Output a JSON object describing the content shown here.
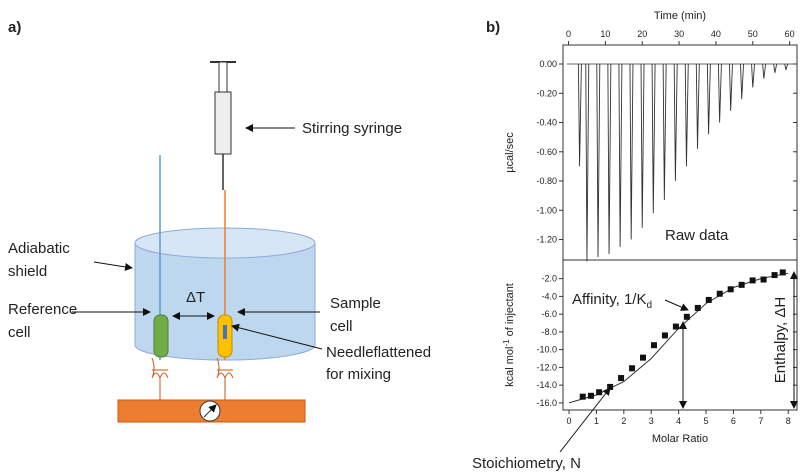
{
  "diagram": {
    "panel_a": "a)",
    "panel_b": "b)",
    "syringe_label": "Stirring syringe",
    "shield_label": [
      "Adiabatic",
      "shield"
    ],
    "reference_label": [
      "Reference",
      "cell"
    ],
    "delta_t": "ΔT",
    "sample_label": [
      "Sample",
      "cell"
    ],
    "needle_label": [
      "Needleflattened",
      "for mixing"
    ]
  },
  "chart_data": [
    {
      "type": "line",
      "x_label": "Time (min)",
      "y_label": "µcal/sec",
      "annotation": "Raw data",
      "color": "#333333",
      "x": [
        3,
        5,
        8,
        11,
        14,
        17,
        20,
        23,
        26,
        29,
        32,
        35,
        38,
        41,
        44,
        47,
        50,
        53,
        56,
        59
      ],
      "values": [
        -0.7,
        -1.35,
        -1.32,
        -1.3,
        -1.25,
        -1.2,
        -1.12,
        -1.02,
        -0.93,
        -0.8,
        -0.7,
        -0.58,
        -0.48,
        -0.4,
        -0.32,
        -0.24,
        -0.16,
        -0.1,
        -0.06,
        -0.04
      ],
      "xlim": [
        -1.5,
        62
      ],
      "xticks": [
        0,
        10,
        20,
        30,
        40,
        50,
        60
      ],
      "ylim": [
        -1.34,
        0.13
      ],
      "yticks": [
        {
          "value": 0,
          "label": "0.00"
        },
        {
          "value": -0.2,
          "label": "-0.20"
        },
        {
          "value": -0.4,
          "label": "-0.40"
        },
        {
          "value": -0.6,
          "label": "-0.60"
        },
        {
          "value": -0.8,
          "label": "-0.80"
        },
        {
          "value": -1.0,
          "label": "-1.00"
        },
        {
          "value": -1.2,
          "label": "-1.20"
        }
      ]
    },
    {
      "type": "scatter",
      "x_label": "Molar Ratio",
      "y_label": [
        "kcal mol",
        "-1",
        " of injectant"
      ],
      "color": "#111111",
      "x": [
        0.5,
        0.8,
        1.1,
        1.5,
        1.9,
        2.3,
        2.7,
        3.1,
        3.5,
        3.9,
        4.3,
        4.7,
        5.1,
        5.5,
        5.9,
        6.3,
        6.7,
        7.1,
        7.5,
        7.8
      ],
      "values": [
        -15.3,
        -15.2,
        -14.8,
        -14.2,
        -13.2,
        -12.1,
        -10.9,
        -9.5,
        -8.4,
        -7.4,
        -6.3,
        -5.3,
        -4.4,
        -3.7,
        -3.2,
        -2.7,
        -2.2,
        -2.1,
        -1.6,
        -1.3
      ],
      "fit": {
        "x": [
          0,
          1,
          2,
          3,
          4,
          5,
          6,
          7,
          8
        ],
        "values": [
          -16.0,
          -15.1,
          -13.6,
          -11.0,
          -7.6,
          -4.8,
          -3.0,
          -2.0,
          -1.4
        ]
      },
      "xlim": [
        -0.22,
        8.32
      ],
      "xticks": [
        0,
        1,
        2,
        3,
        4,
        5,
        6,
        7,
        8
      ],
      "ylim": [
        -16.8,
        0.1
      ],
      "yticks": [
        {
          "value": -2,
          "label": "-2.0"
        },
        {
          "value": -4,
          "label": "-4.0"
        },
        {
          "value": -6,
          "label": "-6.0"
        },
        {
          "value": -8,
          "label": "-8.0"
        },
        {
          "value": -10,
          "label": "-10.0"
        },
        {
          "value": -12,
          "label": "-12.0"
        },
        {
          "value": -14,
          "label": "-14.0"
        },
        {
          "value": -16,
          "label": "-16.0"
        }
      ],
      "annotations": {
        "affinity": [
          "Affinity, 1/K",
          "d"
        ],
        "enthalpy": "Enthalpy, ΔH",
        "stoichiometry": "Stoichiometry, N"
      }
    }
  ]
}
